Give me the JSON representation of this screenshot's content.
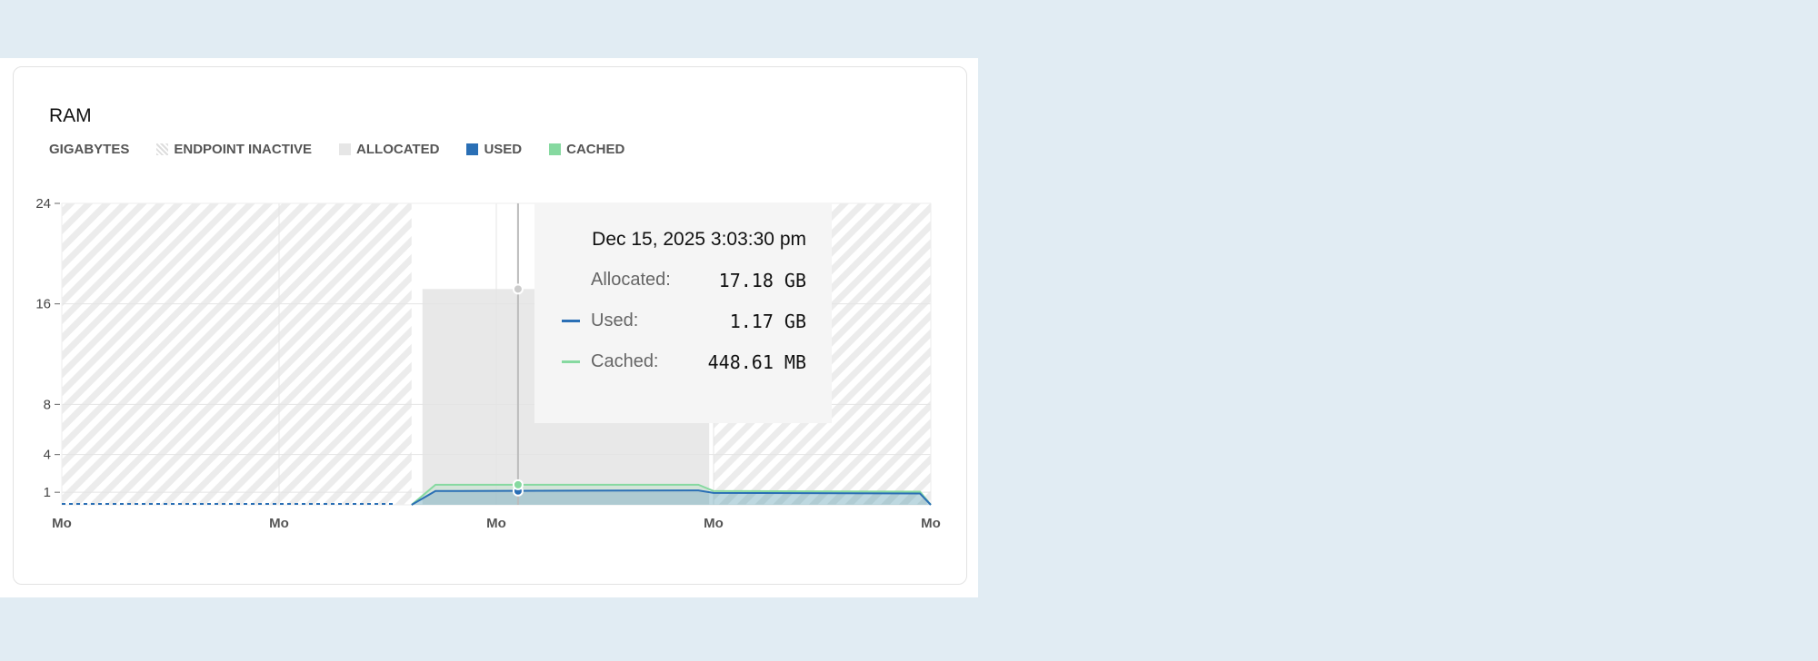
{
  "title": "RAM",
  "legend": {
    "unit": "GIGABYTES",
    "items": [
      {
        "label": "ENDPOINT INACTIVE",
        "color": "#d8d8d8",
        "pattern": "hatch"
      },
      {
        "label": "ALLOCATED",
        "color": "#e6e6e6"
      },
      {
        "label": "USED",
        "color": "#2a6fb5"
      },
      {
        "label": "CACHED",
        "color": "#86d9a0"
      }
    ]
  },
  "tooltip": {
    "date": "Dec 15, 2025 3:03:30 pm",
    "rows": [
      {
        "label": "Allocated:",
        "value": "17.18 GB",
        "color": ""
      },
      {
        "label": "Used:",
        "value": "1.17 GB",
        "color": "#2a6fb5"
      },
      {
        "label": "Cached:",
        "value": "448.61 MB",
        "color": "#86d9a0"
      }
    ]
  },
  "chart_data": {
    "type": "area",
    "ylabel": "GIGABYTES",
    "ylim": [
      0,
      24
    ],
    "yticks": [
      24,
      16,
      8,
      4,
      1
    ],
    "x_tick_labels": [
      "Mo",
      "Mo",
      "Mo",
      "Mo",
      "Mo"
    ],
    "xlim": [
      0,
      4
    ],
    "inactive_ranges": [
      [
        0,
        1.61
      ],
      [
        3.0,
        4
      ]
    ],
    "allocated": {
      "range": [
        1.66,
        2.98
      ],
      "value": 17.18
    },
    "series": [
      {
        "name": "USED",
        "color": "#2a6fb5",
        "x": [
          1.61,
          1.72,
          2.93,
          3.0,
          3.95,
          4.0
        ],
        "values": [
          0,
          1.1,
          1.15,
          0.95,
          0.9,
          0
        ]
      },
      {
        "name": "CACHED",
        "color": "#86d9a0",
        "x": [
          1.61,
          1.72,
          2.93,
          3.0,
          3.95,
          4.0
        ],
        "values": [
          0,
          1.6,
          1.6,
          1.1,
          1.05,
          0
        ]
      }
    ],
    "hover_x": 2.1,
    "grid": true
  }
}
